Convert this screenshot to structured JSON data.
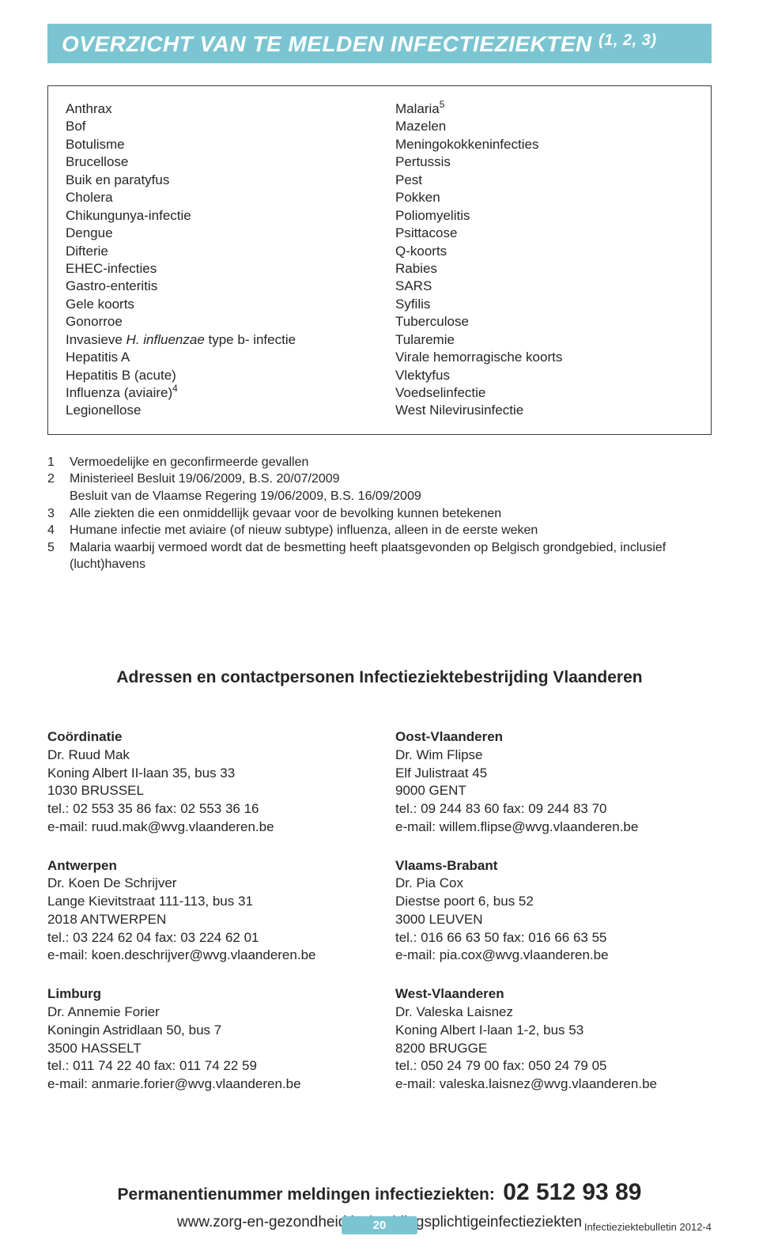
{
  "colors": {
    "accent": "#7bc5d2",
    "text": "#262626",
    "border": "#3a3a3a",
    "white": "#ffffff"
  },
  "title": {
    "main": "Overzicht van te melden infectieziekten",
    "ref": "(1, 2, 3)"
  },
  "diseases": {
    "left": [
      "Anthrax",
      "Bof",
      "Botulisme",
      "Brucellose",
      "Buik en paratyfus",
      "Cholera",
      "Chikungunya-infectie",
      "Dengue",
      "Difterie",
      "EHEC-infecties",
      "Gastro-enteritis",
      "Gele koorts",
      "Gonorroe",
      {
        "pre": "Invasieve ",
        "em": "H. influenzae",
        "post": " type b- infectie"
      },
      "Hepatitis A",
      "Hepatitis B (acute)",
      {
        "text": "Influenza (aviaire)",
        "sup": "4"
      },
      "Legionellose"
    ],
    "right": [
      {
        "text": "Malaria",
        "sup": "5"
      },
      "Mazelen",
      "Meningokokkeninfecties",
      "Pertussis",
      "Pest",
      "Pokken",
      "Poliomyelitis",
      "Psittacose",
      "Q-koorts",
      "Rabies",
      "SARS",
      "Syfilis",
      "Tuberculose",
      "Tularemie",
      "Virale hemorragische koorts",
      "Vlektyfus",
      "Voedselinfectie",
      "West Nilevirusinfectie"
    ]
  },
  "footnotes": [
    {
      "n": "1",
      "t": "Vermoedelijke en geconfirmeerde gevallen"
    },
    {
      "n": "2",
      "t": "Ministerieel Besluit 19/06/2009, B.S. 20/07/2009\nBesluit van de Vlaamse Regering 19/06/2009, B.S. 16/09/2009"
    },
    {
      "n": "3",
      "t": "Alle ziekten die een onmiddellijk gevaar voor de bevolking kunnen betekenen"
    },
    {
      "n": "4",
      "t": "Humane infectie met aviaire (of nieuw subtype) influenza, alleen in de eerste weken"
    },
    {
      "n": "5",
      "t": "Malaria waarbij vermoed wordt dat de besmetting heeft plaatsgevonden op Belgisch grondgebied, inclusief (lucht)havens"
    }
  ],
  "sectionHeading": "Adressen en contactpersonen Infectieziektebestrijding Vlaanderen",
  "contacts": {
    "left": [
      {
        "region": "Coördinatie",
        "name": "Dr. Ruud Mak",
        "addr1": "Koning Albert II-laan 35, bus 33",
        "addr2": "1030 BRUSSEL",
        "tel": "tel.: 02 553 35 86 fax: 02 553 36 16",
        "email": "e-mail: ruud.mak@wvg.vlaanderen.be"
      },
      {
        "region": "Antwerpen",
        "name": "Dr. Koen De Schrijver",
        "addr1": "Lange Kievitstraat 111-113, bus 31",
        "addr2": "2018 ANTWERPEN",
        "tel": "tel.: 03 224 62 04 fax: 03 224 62 01",
        "email": "e-mail: koen.deschrijver@wvg.vlaanderen.be"
      },
      {
        "region": "Limburg",
        "name": "Dr. Annemie Forier",
        "addr1": "Koningin Astridlaan 50, bus 7",
        "addr2": "3500 HASSELT",
        "tel": "tel.: 011 74 22 40 fax: 011 74 22 59",
        "email": "e-mail: anmarie.forier@wvg.vlaanderen.be"
      }
    ],
    "right": [
      {
        "region": "Oost-Vlaanderen",
        "name": "Dr. Wim Flipse",
        "addr1": "Elf Julistraat 45",
        "addr2": "9000 GENT",
        "tel": "tel.: 09 244 83 60 fax: 09 244 83 70",
        "email": "e-mail: willem.flipse@wvg.vlaanderen.be"
      },
      {
        "region": "Vlaams-Brabant",
        "name": "Dr. Pia Cox",
        "addr1": "Diestse poort 6, bus 52",
        "addr2": "3000 LEUVEN",
        "tel": "tel.: 016 66 63 50 fax: 016 66 63 55",
        "email": "e-mail: pia.cox@wvg.vlaanderen.be"
      },
      {
        "region": "West-Vlaanderen",
        "name": "Dr. Valeska Laisnez",
        "addr1": "Koning Albert I-laan 1-2, bus 53",
        "addr2": "8200 BRUGGE",
        "tel": "tel.: 050 24 79 00 fax: 050 24 79 05",
        "email": "e-mail: valeska.laisnez@wvg.vlaanderen.be"
      }
    ]
  },
  "perm": {
    "label": "Permanentienummer meldingen infectieziekten:",
    "number": "02 512 93 89"
  },
  "url": "www.zorg-en-gezondheid.be/meldingsplichtigeinfectieziekten",
  "page": "20",
  "footerRight": "Infectieziektebulletin 2012-4"
}
